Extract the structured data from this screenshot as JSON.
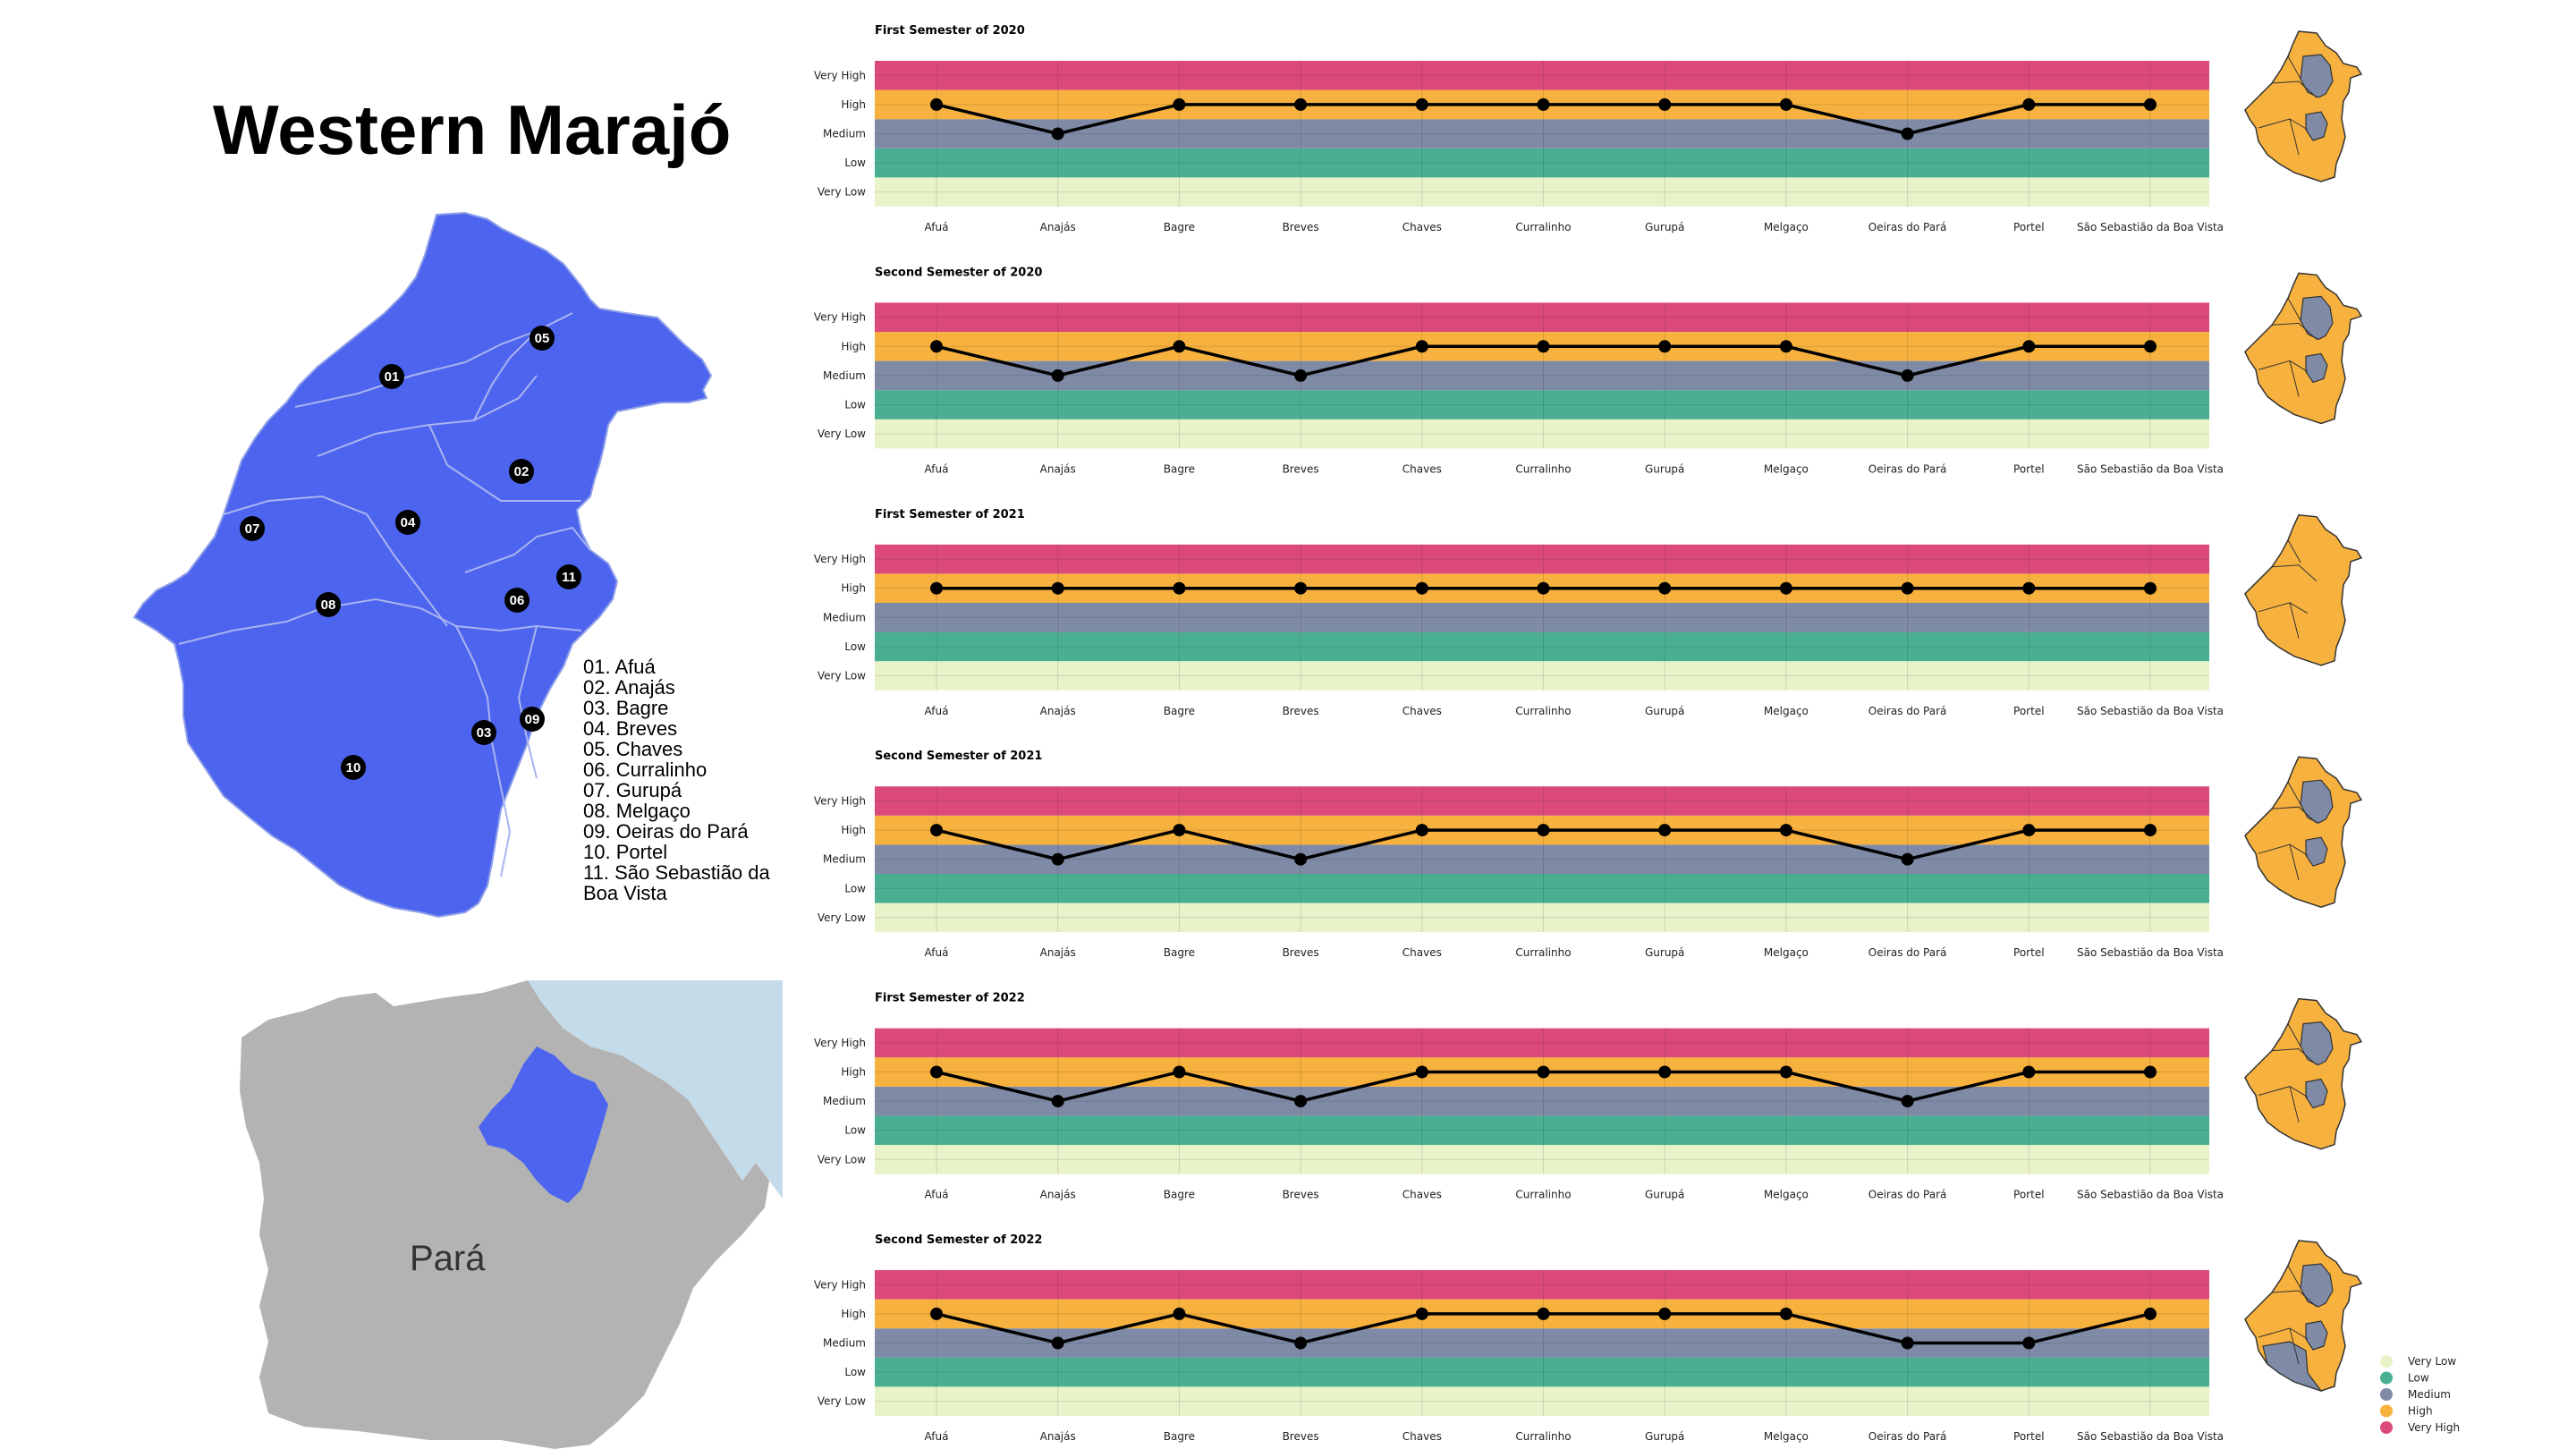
{
  "title": "Western Marajó",
  "state_label": "Pará",
  "municipality_list": [
    "01. Afuá",
    "02. Anajás",
    "03. Bagre",
    "04. Breves",
    "05. Chaves",
    "06. Curralinho",
    "07. Gurupá",
    "08. Melgaço",
    "09. Oeiras do Pará",
    "10. Portel",
    "11. São Sebastião da Boa Vista"
  ],
  "map_markers": [
    "01",
    "02",
    "03",
    "04",
    "05",
    "06",
    "07",
    "08",
    "09",
    "10",
    "11"
  ],
  "colors": {
    "very_low": "#e9f3c9",
    "low": "#4aaf92",
    "medium": "#7f8aa6",
    "high": "#f7b13e",
    "very_high": "#db4a7b",
    "map_blue": "#4d64ef",
    "state_gray": "#b3b3b3",
    "ocean": "#c4dcea"
  },
  "chart_data": [
    {
      "type": "line",
      "title": "First Semester of 2020",
      "categories": [
        "Afuá",
        "Anajás",
        "Bagre",
        "Breves",
        "Chaves",
        "Curralinho",
        "Gurupá",
        "Melgaço",
        "Oeiras do Pará",
        "Portel",
        "São Sebastião da Boa Vista"
      ],
      "levels": [
        "Very Low",
        "Low",
        "Medium",
        "High",
        "Very High"
      ],
      "values": [
        "High",
        "Medium",
        "High",
        "High",
        "High",
        "High",
        "High",
        "High",
        "Medium",
        "High",
        "High"
      ]
    },
    {
      "type": "line",
      "title": "Second Semester of 2020",
      "categories": [
        "Afuá",
        "Anajás",
        "Bagre",
        "Breves",
        "Chaves",
        "Curralinho",
        "Gurupá",
        "Melgaço",
        "Oeiras do Pará",
        "Portel",
        "São Sebastião da Boa Vista"
      ],
      "levels": [
        "Very Low",
        "Low",
        "Medium",
        "High",
        "Very High"
      ],
      "values": [
        "High",
        "Medium",
        "High",
        "Medium",
        "High",
        "High",
        "High",
        "High",
        "Medium",
        "High",
        "High"
      ]
    },
    {
      "type": "line",
      "title": "First Semester of 2021",
      "categories": [
        "Afuá",
        "Anajás",
        "Bagre",
        "Breves",
        "Chaves",
        "Curralinho",
        "Gurupá",
        "Melgaço",
        "Oeiras do Pará",
        "Portel",
        "São Sebastião da Boa Vista"
      ],
      "levels": [
        "Very Low",
        "Low",
        "Medium",
        "High",
        "Very High"
      ],
      "values": [
        "High",
        "High",
        "High",
        "High",
        "High",
        "High",
        "High",
        "High",
        "High",
        "High",
        "High"
      ]
    },
    {
      "type": "line",
      "title": "Second Semester of 2021",
      "categories": [
        "Afuá",
        "Anajás",
        "Bagre",
        "Breves",
        "Chaves",
        "Curralinho",
        "Gurupá",
        "Melgaço",
        "Oeiras do Pará",
        "Portel",
        "São Sebastião da Boa Vista"
      ],
      "levels": [
        "Very Low",
        "Low",
        "Medium",
        "High",
        "Very High"
      ],
      "values": [
        "High",
        "Medium",
        "High",
        "Medium",
        "High",
        "High",
        "High",
        "High",
        "Medium",
        "High",
        "High"
      ]
    },
    {
      "type": "line",
      "title": "First Semester of 2022",
      "categories": [
        "Afuá",
        "Anajás",
        "Bagre",
        "Breves",
        "Chaves",
        "Curralinho",
        "Gurupá",
        "Melgaço",
        "Oeiras do Pará",
        "Portel",
        "São Sebastião da Boa Vista"
      ],
      "levels": [
        "Very Low",
        "Low",
        "Medium",
        "High",
        "Very High"
      ],
      "values": [
        "High",
        "Medium",
        "High",
        "Medium",
        "High",
        "High",
        "High",
        "High",
        "Medium",
        "High",
        "High"
      ]
    },
    {
      "type": "line",
      "title": "Second Semester of 2022",
      "categories": [
        "Afuá",
        "Anajás",
        "Bagre",
        "Breves",
        "Chaves",
        "Curralinho",
        "Gurupá",
        "Melgaço",
        "Oeiras do Pará",
        "Portel",
        "São Sebastião da Boa Vista"
      ],
      "levels": [
        "Very Low",
        "Low",
        "Medium",
        "High",
        "Very High"
      ],
      "values": [
        "High",
        "Medium",
        "High",
        "Medium",
        "High",
        "High",
        "High",
        "High",
        "Medium",
        "Medium",
        "High"
      ]
    }
  ],
  "legend": {
    "placement": "bottom-right",
    "items": [
      "Very Low",
      "Low",
      "Medium",
      "High",
      "Very High"
    ]
  }
}
